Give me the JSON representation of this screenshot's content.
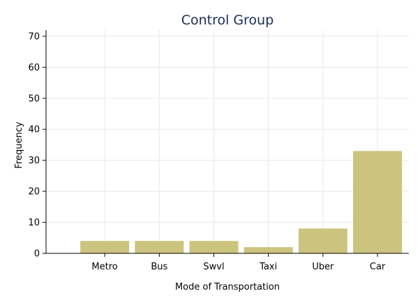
{
  "chart_data": {
    "type": "bar",
    "title": "Control Group",
    "xlabel": "Mode of Transportation",
    "ylabel": "Frequency",
    "categories": [
      "Metro",
      "Bus",
      "Swvl",
      "Taxi",
      "Uber",
      "Car"
    ],
    "values": [
      4,
      4,
      4,
      2,
      8,
      33
    ],
    "ylim": [
      0,
      72
    ],
    "yticks": [
      0,
      10,
      20,
      30,
      40,
      50,
      60,
      70
    ],
    "grid": true,
    "legend": "none",
    "bar_color": "#ccc47e",
    "title_color": "#1a2d55"
  }
}
